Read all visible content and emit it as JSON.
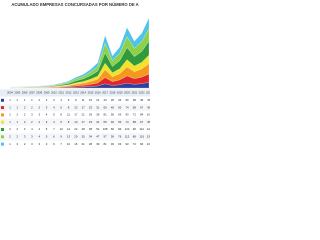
{
  "chart_data": {
    "type": "stacked-area",
    "title": "ACUMULADO EMPRESAS CONCURSADAS POR NÚMERO DE A",
    "categories": [
      "2004",
      "2005",
      "2006",
      "2007",
      "2008",
      "2009",
      "2010",
      "2011",
      "2012",
      "2013",
      "2014",
      "2015",
      "2016",
      "2017",
      "2018",
      "2019",
      "2020",
      "2021",
      "2022",
      "2023"
    ],
    "ylim": [
      0,
      800
    ],
    "series": [
      {
        "color": "#2e3f9e",
        "values": [
          1,
          1,
          1,
          1,
          2,
          2,
          3,
          4,
          6,
          9,
          11,
          15,
          21,
          43,
          26,
          34,
          50,
          38,
          45,
          58
        ]
      },
      {
        "color": "#e0262a",
        "values": [
          1,
          1,
          2,
          2,
          2,
          3,
          4,
          6,
          8,
          13,
          17,
          23,
          31,
          65,
          40,
          50,
          74,
          58,
          67,
          86
        ]
      },
      {
        "color": "#f39a1e",
        "values": [
          2,
          2,
          2,
          3,
          3,
          4,
          5,
          8,
          11,
          17,
          21,
          29,
          39,
          81,
          50,
          63,
          93,
          72,
          84,
          108
        ]
      },
      {
        "color": "#f5e12a",
        "values": [
          1,
          1,
          2,
          2,
          2,
          3,
          4,
          6,
          8,
          13,
          17,
          23,
          31,
          65,
          40,
          50,
          74,
          58,
          67,
          86
        ]
      },
      {
        "color": "#2f9b3c",
        "values": [
          2,
          2,
          3,
          4,
          4,
          5,
          7,
          10,
          14,
          22,
          28,
          38,
          52,
          108,
          66,
          84,
          124,
          96,
          112,
          144
        ]
      },
      {
        "color": "#8fd04a",
        "values": [
          2,
          2,
          3,
          3,
          4,
          5,
          6,
          9,
          13,
          20,
          25,
          34,
          47,
          97,
          59,
          76,
          112,
          86,
          101,
          130
        ]
      },
      {
        "color": "#4fc3e8",
        "values": [
          1,
          3,
          2,
          3,
          3,
          3,
          6,
          7,
          10,
          16,
          21,
          28,
          39,
          81,
          49,
          63,
          93,
          72,
          84,
          108
        ]
      }
    ]
  }
}
